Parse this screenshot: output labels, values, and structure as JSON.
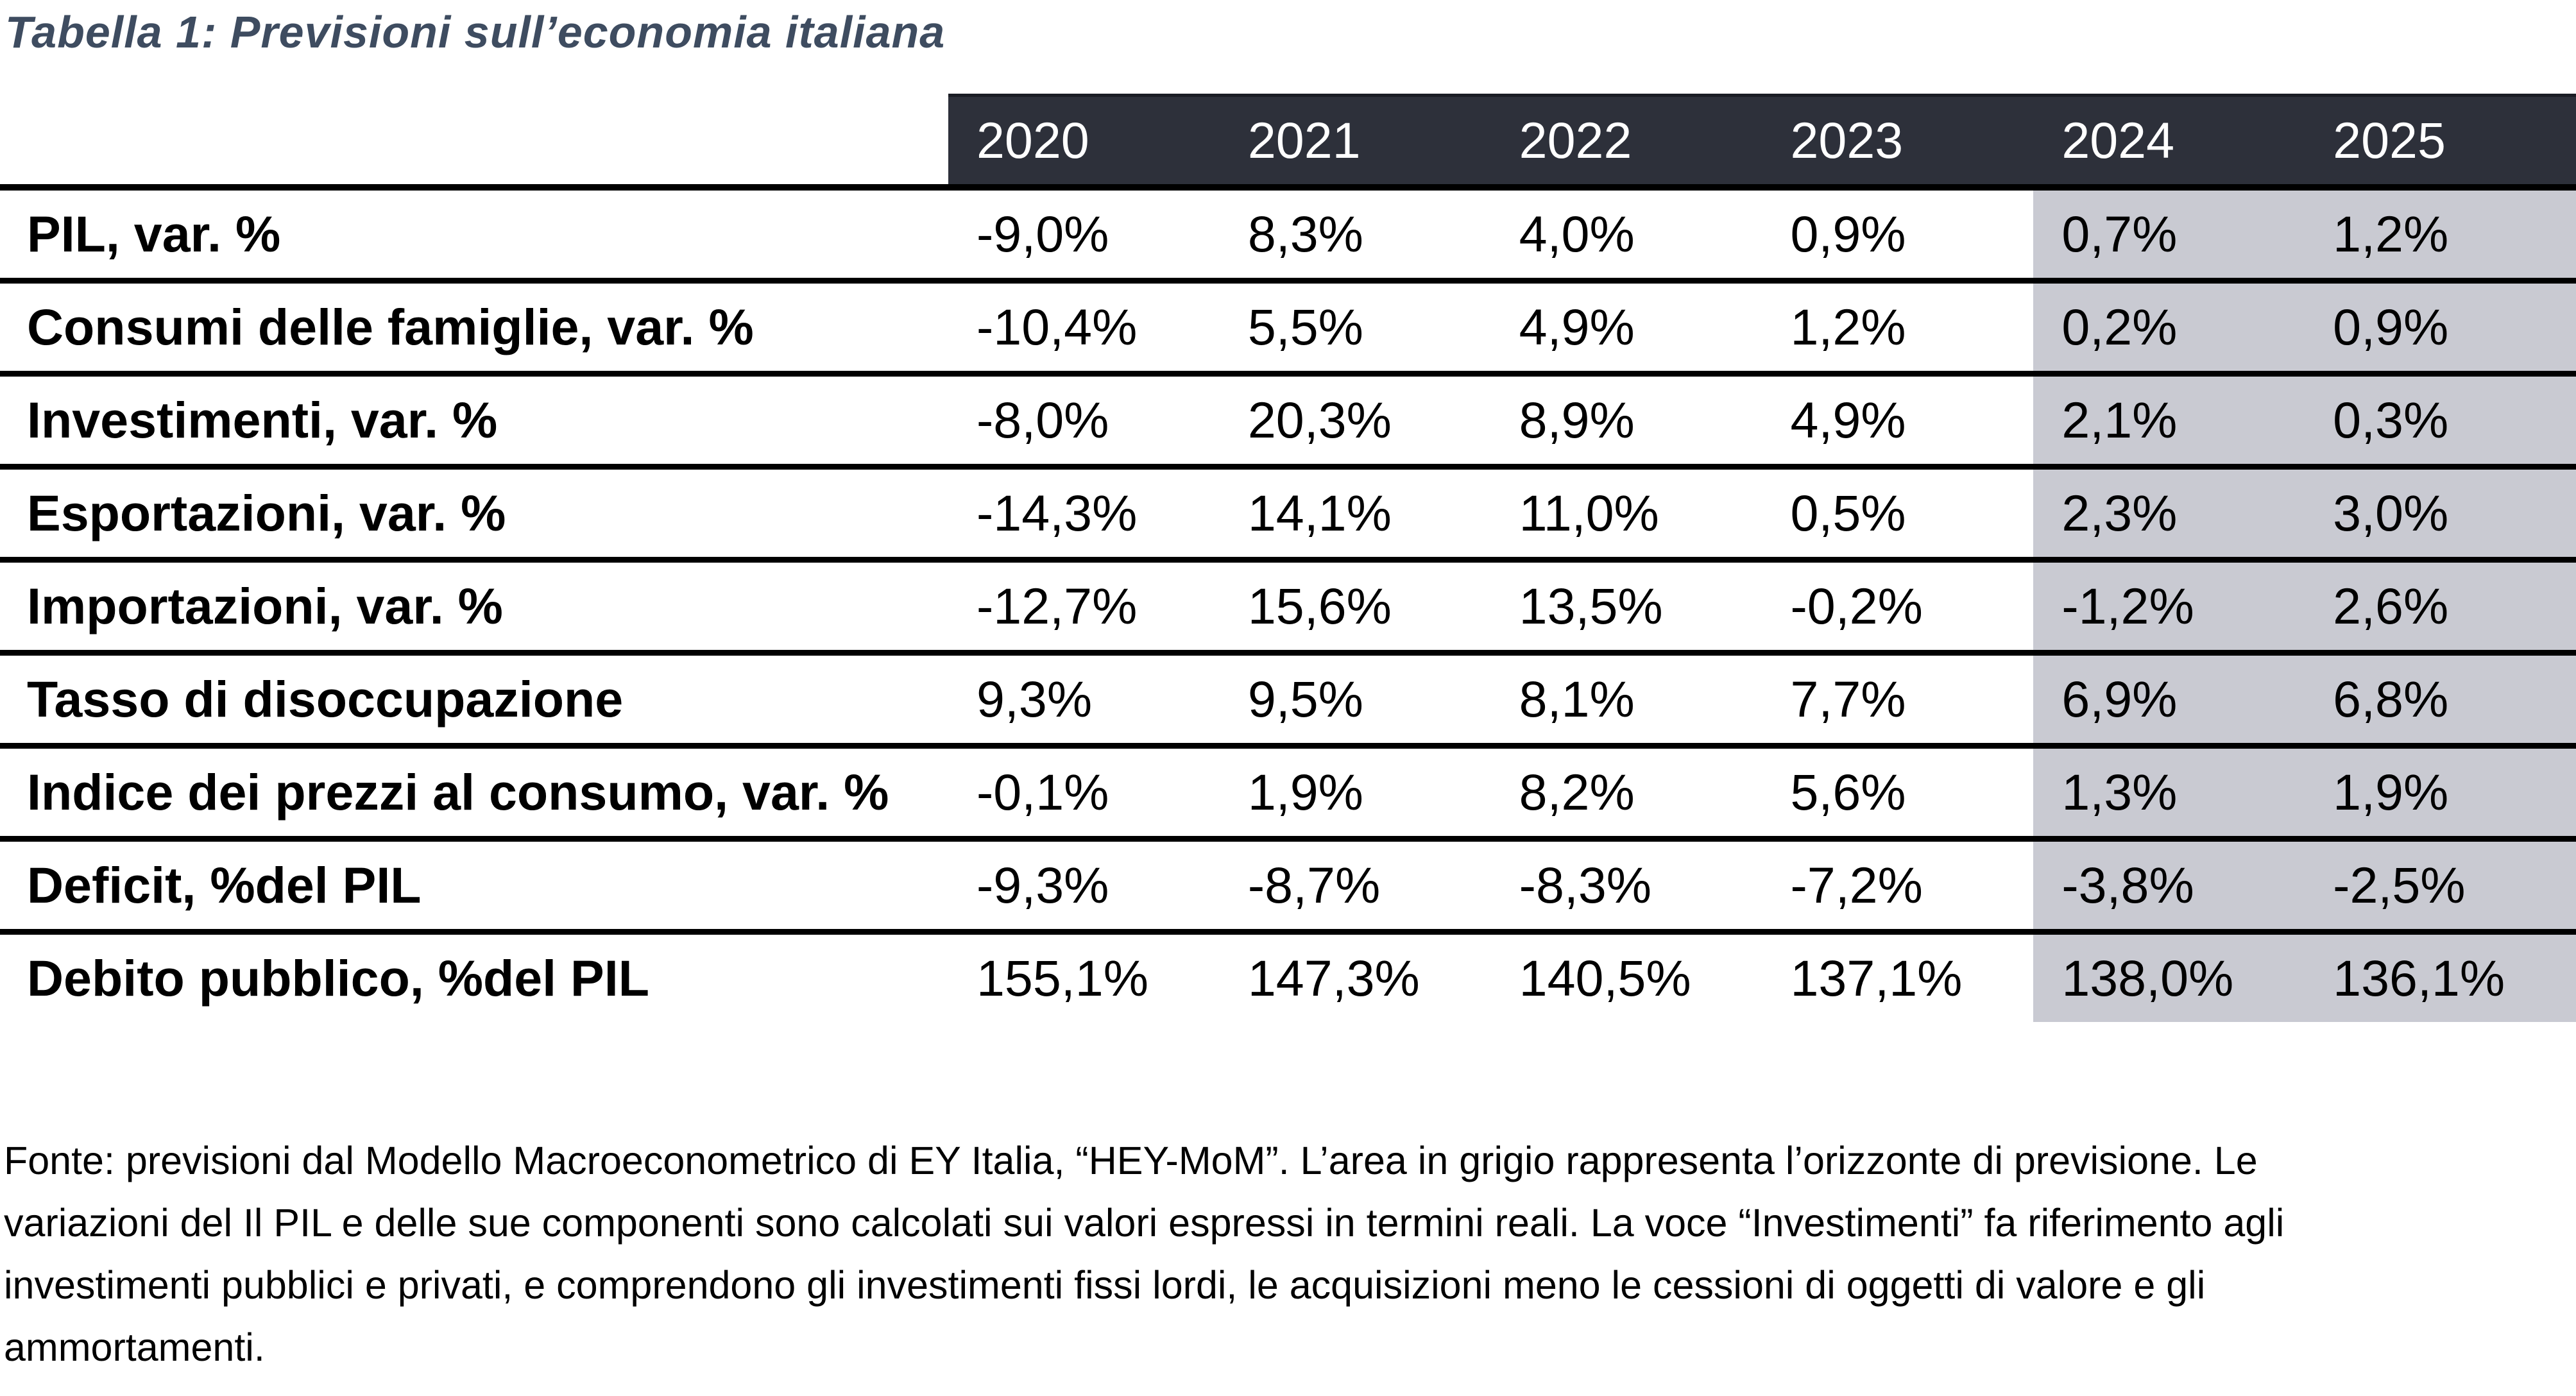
{
  "title": "Tabella 1: Previsioni sull’economia italiana",
  "colors": {
    "header_bg": "#2d303a",
    "forecast_shading": "#c9cad2",
    "title_color": "#3e4c60",
    "grid_line": "#000000"
  },
  "table": {
    "years": [
      "2020",
      "2021",
      "2022",
      "2023",
      "2024",
      "2025"
    ],
    "forecast_from_index": 4,
    "rows": [
      {
        "label": "PIL, var. %",
        "values": [
          "-9,0%",
          "8,3%",
          "4,0%",
          "0,9%",
          "0,7%",
          "1,2%"
        ]
      },
      {
        "label": "Consumi delle famiglie, var. %",
        "values": [
          "-10,4%",
          "5,5%",
          "4,9%",
          "1,2%",
          "0,2%",
          "0,9%"
        ]
      },
      {
        "label": "Investimenti, var. %",
        "values": [
          "-8,0%",
          "20,3%",
          "8,9%",
          "4,9%",
          "2,1%",
          "0,3%"
        ]
      },
      {
        "label": "Esportazioni, var. %",
        "values": [
          "-14,3%",
          "14,1%",
          "11,0%",
          "0,5%",
          "2,3%",
          "3,0%"
        ]
      },
      {
        "label": "Importazioni, var. %",
        "values": [
          "-12,7%",
          "15,6%",
          "13,5%",
          "-0,2%",
          "-1,2%",
          "2,6%"
        ]
      },
      {
        "label": "Tasso di disoccupazione",
        "values": [
          "9,3%",
          "9,5%",
          "8,1%",
          "7,7%",
          "6,9%",
          "6,8%"
        ]
      },
      {
        "label": "Indice dei prezzi al consumo, var. %",
        "values": [
          "-0,1%",
          "1,9%",
          "8,2%",
          "5,6%",
          "1,3%",
          "1,9%"
        ]
      },
      {
        "label": "Deficit, %del PIL",
        "values": [
          "-9,3%",
          "-8,7%",
          "-8,3%",
          "-7,2%",
          "-3,8%",
          "-2,5%"
        ]
      },
      {
        "label": "Debito pubblico, %del PIL",
        "values": [
          "155,1%",
          "147,3%",
          "140,5%",
          "137,1%",
          "138,0%",
          "136,1%"
        ]
      }
    ]
  },
  "footnote_lines": [
    "Fonte: previsioni dal Modello Macroeconometrico di EY Italia, “HEY-MoM”. L’area in grigio rappresenta l’orizzonte di previsione. Le",
    "variazioni del Il PIL e delle sue componenti sono calcolati sui valori espressi in termini reali. La voce “Investimenti” fa riferimento agli",
    "investimenti pubblici e privati, e comprendono gli investimenti fissi lordi, le acquisizioni meno le cessioni di oggetti di valore e gli",
    "ammortamenti."
  ]
}
